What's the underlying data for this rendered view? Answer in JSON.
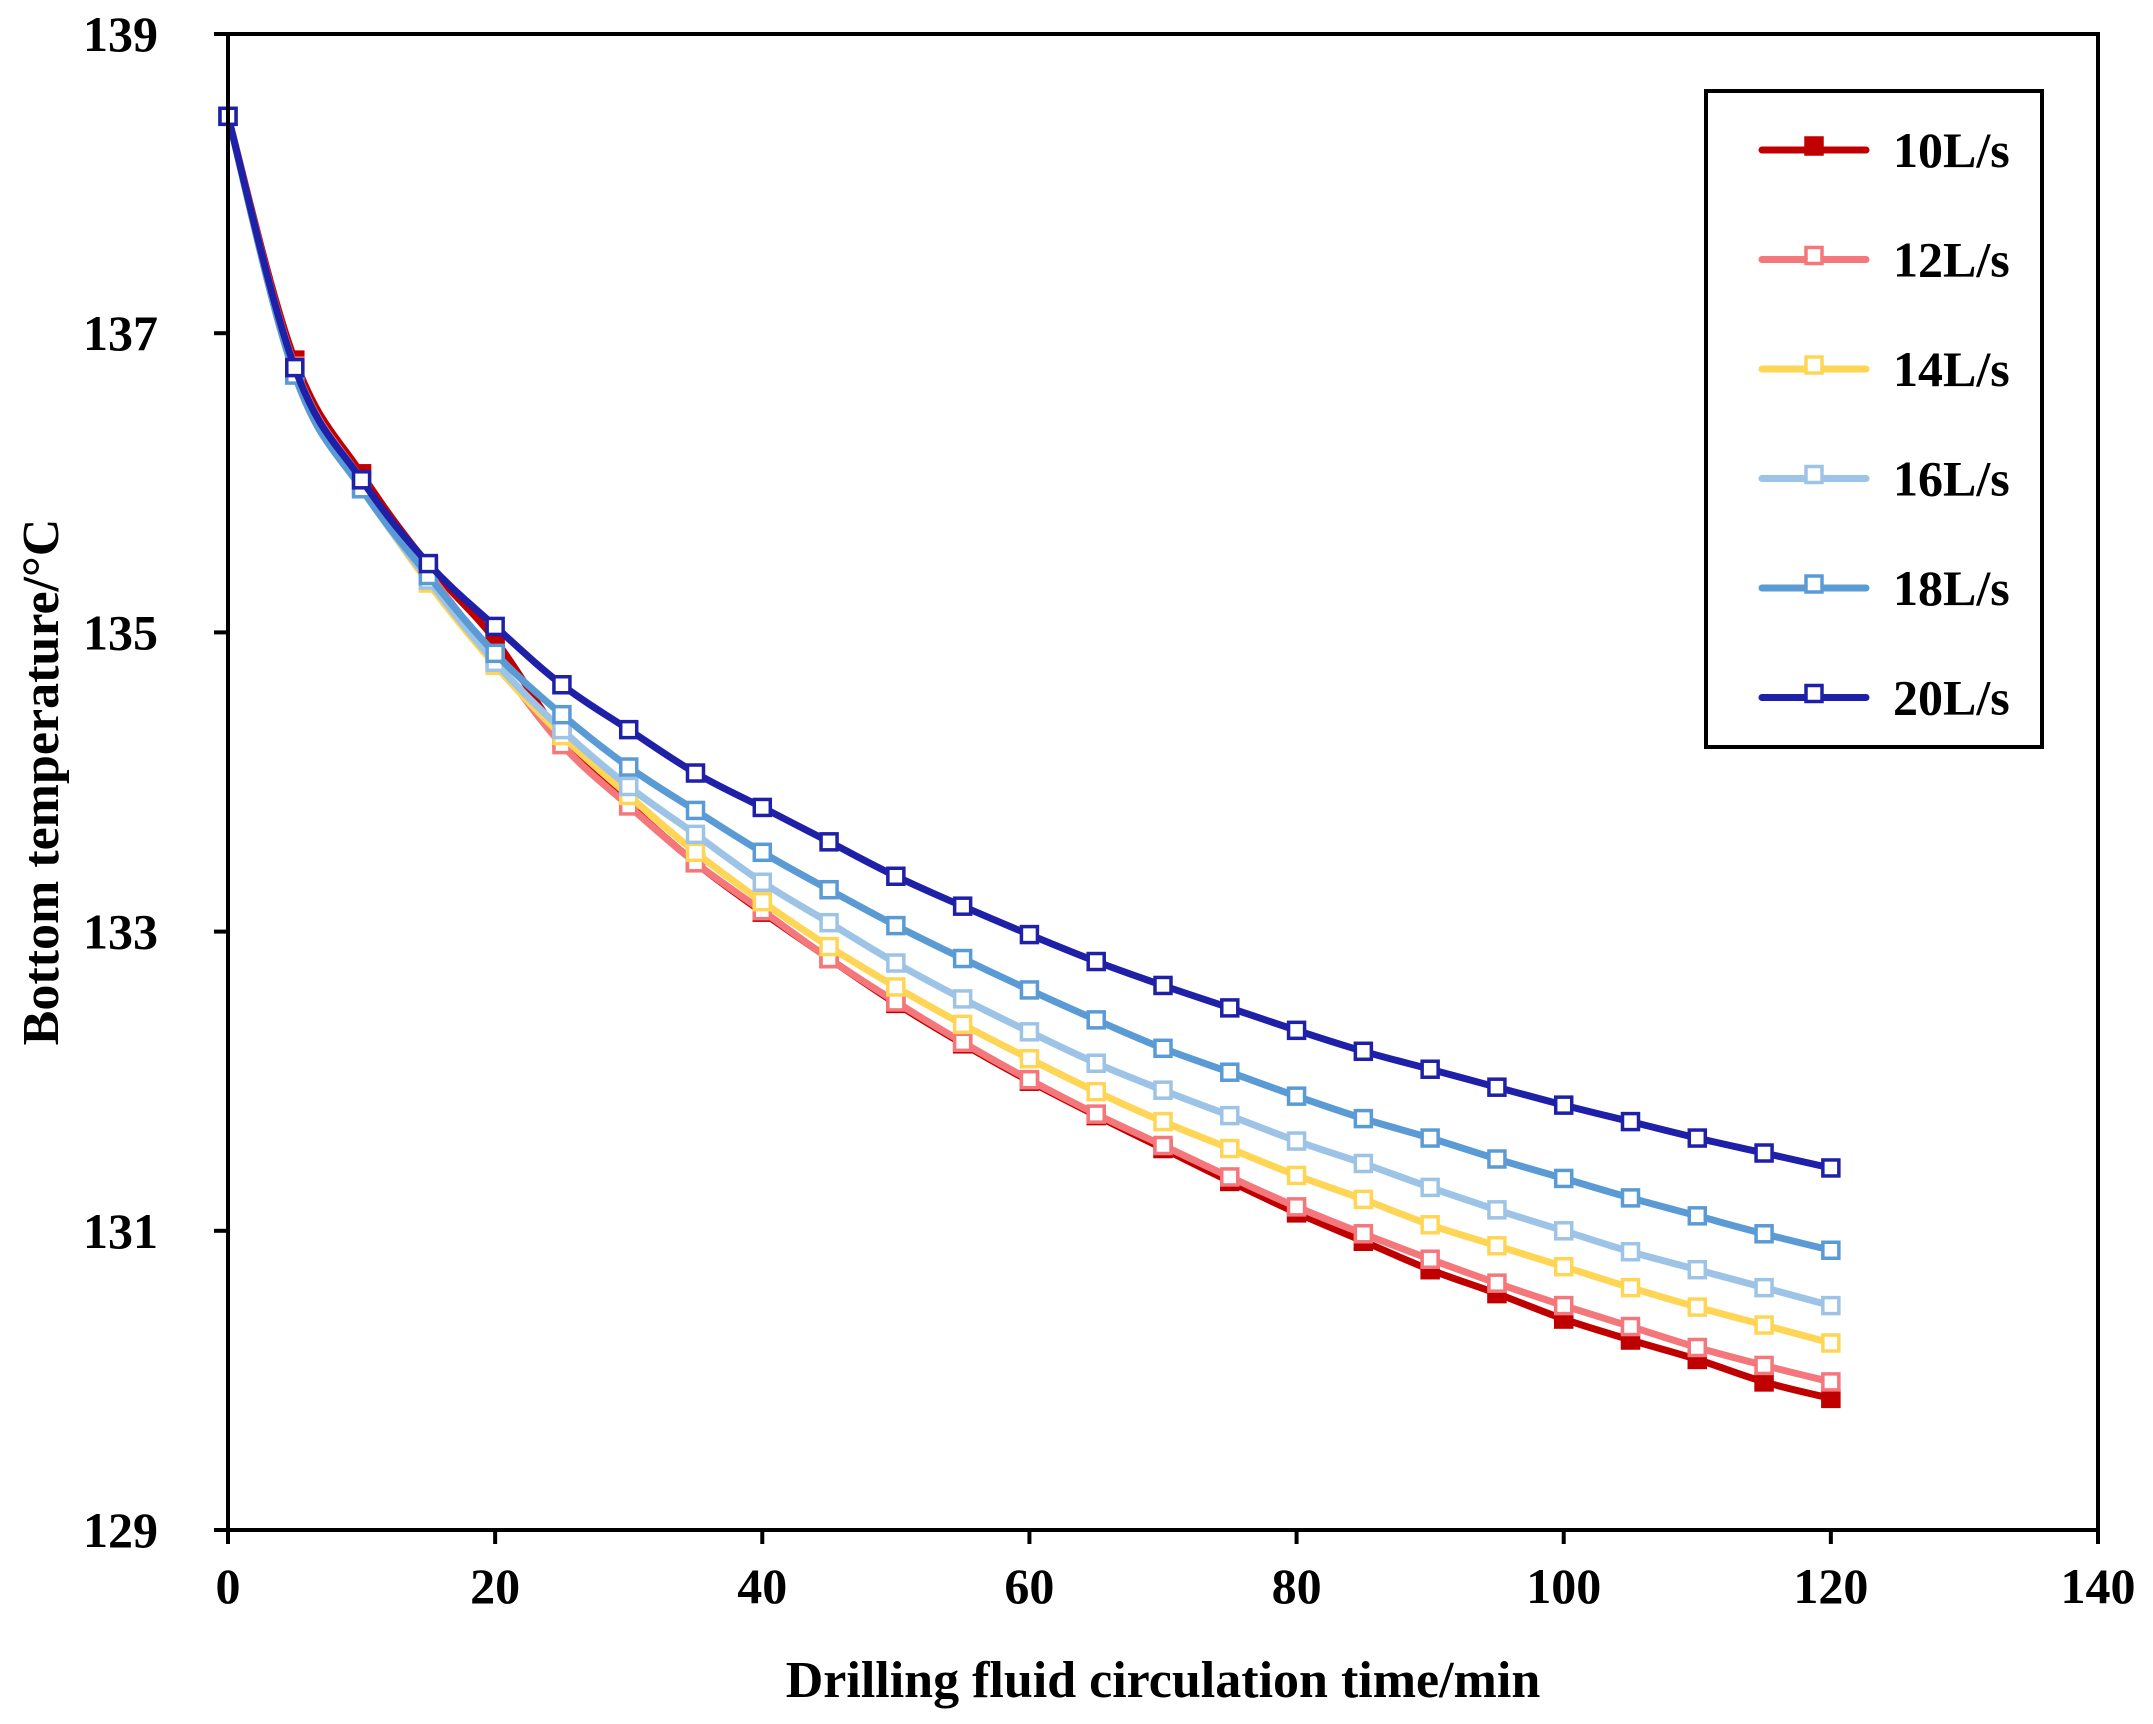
{
  "chart_data": {
    "type": "line",
    "title": "",
    "xlabel": "Drilling fluid circulation time/min",
    "ylabel": "Bottom temperature/°C",
    "xlim": [
      0,
      140
    ],
    "ylim": [
      129,
      139
    ],
    "xticks": [
      0,
      20,
      40,
      60,
      80,
      100,
      120,
      140
    ],
    "yticks": [
      129,
      131,
      133,
      135,
      137,
      139
    ],
    "grid": false,
    "legend_position": "top-right",
    "x": [
      0,
      5,
      10,
      15,
      20,
      25,
      30,
      35,
      40,
      45,
      50,
      55,
      60,
      65,
      70,
      75,
      80,
      85,
      90,
      95,
      100,
      105,
      110,
      115,
      120
    ],
    "series": [
      {
        "name": "10L/s",
        "color": "#C00000",
        "marker_fill": "#C00000",
        "values": [
          138.45,
          136.82,
          136.06,
          135.45,
          134.95,
          134.3,
          133.85,
          133.46,
          133.13,
          132.82,
          132.52,
          132.25,
          132.0,
          131.77,
          131.55,
          131.33,
          131.12,
          130.93,
          130.74,
          130.58,
          130.41,
          130.27,
          130.14,
          129.99,
          129.88
        ]
      },
      {
        "name": "12L/s",
        "color": "#F4777B",
        "marker_fill": "#ffffff",
        "values": [
          138.45,
          136.78,
          136.02,
          135.4,
          134.82,
          134.25,
          133.84,
          133.46,
          133.14,
          132.82,
          132.53,
          132.26,
          132.01,
          131.78,
          131.57,
          131.36,
          131.16,
          130.98,
          130.81,
          130.65,
          130.5,
          130.36,
          130.22,
          130.1,
          129.99
        ]
      },
      {
        "name": "14L/s",
        "color": "#FFD555",
        "marker_fill": "#ffffff",
        "values": [
          138.45,
          136.74,
          135.98,
          135.33,
          134.78,
          134.31,
          133.91,
          133.53,
          133.2,
          132.9,
          132.63,
          132.38,
          132.15,
          131.93,
          131.73,
          131.55,
          131.37,
          131.21,
          131.04,
          130.9,
          130.76,
          130.62,
          130.49,
          130.37,
          130.25
        ]
      },
      {
        "name": "16L/s",
        "color": "#9DC3E6",
        "marker_fill": "#ffffff",
        "values": [
          138.45,
          136.75,
          135.97,
          135.35,
          134.8,
          134.35,
          133.97,
          133.65,
          133.33,
          133.06,
          132.79,
          132.55,
          132.33,
          132.12,
          131.94,
          131.77,
          131.6,
          131.45,
          131.29,
          131.14,
          131.0,
          130.86,
          130.74,
          130.62,
          130.5
        ]
      },
      {
        "name": "18L/s",
        "color": "#5B9BD5",
        "marker_fill": "#ffffff",
        "values": [
          138.45,
          136.72,
          135.96,
          135.38,
          134.86,
          134.45,
          134.1,
          133.81,
          133.53,
          133.28,
          133.04,
          132.82,
          132.61,
          132.41,
          132.22,
          132.06,
          131.9,
          131.75,
          131.62,
          131.48,
          131.35,
          131.22,
          131.1,
          130.98,
          130.87
        ]
      },
      {
        "name": "20L/s",
        "color": "#1F20A8",
        "marker_fill": "#ffffff",
        "values": [
          138.45,
          136.77,
          136.02,
          135.46,
          135.04,
          134.65,
          134.35,
          134.06,
          133.83,
          133.6,
          133.37,
          133.17,
          132.98,
          132.8,
          132.64,
          132.49,
          132.34,
          132.2,
          132.08,
          131.96,
          131.84,
          131.73,
          131.62,
          131.52,
          131.42
        ]
      }
    ]
  }
}
